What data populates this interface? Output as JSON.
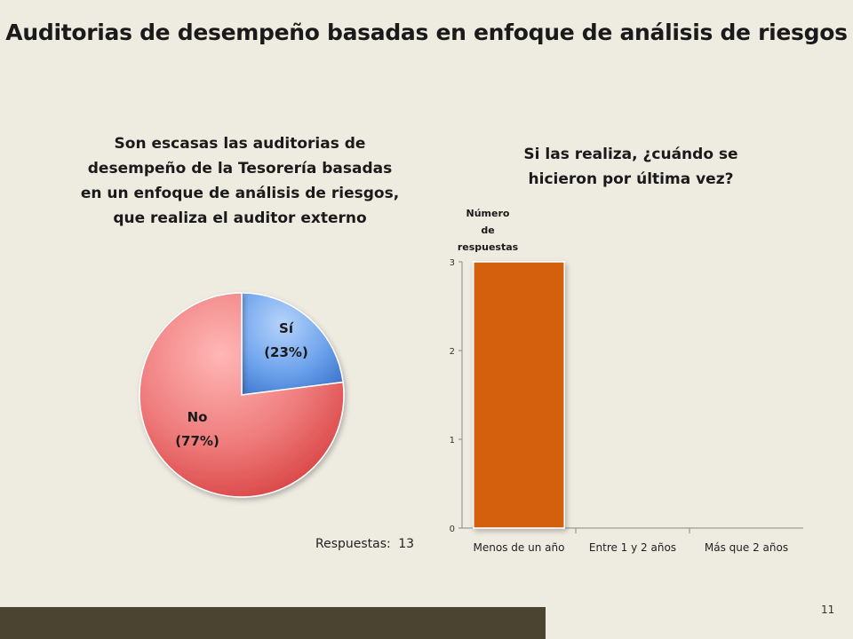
{
  "slide": {
    "title": "Auditorias de desempeño basadas en enfoque de análisis de riesgos",
    "page_number": "11"
  },
  "pie_chart": {
    "title_lines": [
      "Son escasas las auditorias de",
      "desempeño de la Tesorería basadas",
      "en un enfoque de análisis de riesgos,",
      "que realiza el auditor externo"
    ],
    "responses_label": "Respuestas:",
    "responses_value": "13"
  },
  "bar_chart": {
    "title_lines": [
      "Si las realiza, ¿cuándo se",
      "hicieron por última vez?"
    ],
    "ylabel_lines": [
      "Número",
      "de",
      "respuestas"
    ]
  },
  "colors": {
    "background": "#eeebe1",
    "pie_si": "#4a86dc",
    "pie_no": "#e04a4a",
    "bar": "#d45f10",
    "footer_bar": "#4a4431"
  },
  "chart_data": [
    {
      "type": "pie",
      "slices": [
        {
          "label": "Sí",
          "percent_label": "(23%)",
          "value": 23
        },
        {
          "label": "No",
          "percent_label": "(77%)",
          "value": 77
        }
      ],
      "start": "12 o'clock, clockwise",
      "legend": "none"
    },
    {
      "type": "bar",
      "categories": [
        "Menos de un año",
        "Entre 1 y 2 años",
        "Más que 2 años"
      ],
      "values": [
        3,
        0,
        0
      ],
      "ylim": [
        0,
        3
      ],
      "yticks": [
        "0",
        "1",
        "2",
        "3"
      ],
      "grid": false,
      "legend": "none"
    }
  ]
}
